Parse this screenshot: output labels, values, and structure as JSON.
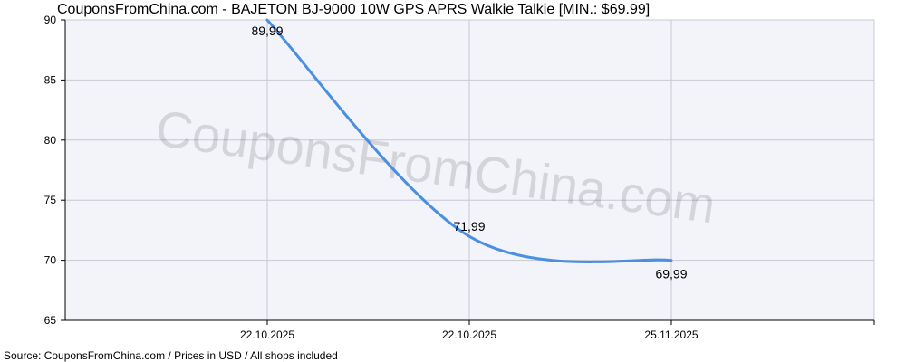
{
  "title": "CouponsFromChina.com - BAJETON BJ-9000 10W GPS APRS Walkie Talkie [MIN.: $69.99]",
  "footer": "Source: CouponsFromChina.com / Prices in USD / All shops included",
  "watermark": "CouponsFromChina.com",
  "colors": {
    "line": "#4a90e2",
    "plot_bg": "#f3f3fa",
    "grid": "#c8c8d4"
  },
  "chart_data": {
    "type": "line",
    "title": "CouponsFromChina.com - BAJETON BJ-9000 10W GPS APRS Walkie Talkie [MIN.: $69.99]",
    "xlabel": "",
    "ylabel": "",
    "ylim": [
      65,
      90
    ],
    "y_ticks": [
      90,
      85,
      80,
      75,
      70,
      65
    ],
    "grid": true,
    "categories": [
      "22.10.2025",
      "22.10.2025",
      "25.11.2025"
    ],
    "series": [
      {
        "values": [
          89.99,
          71.99,
          69.99
        ],
        "labels": [
          "89,99",
          "71,99",
          "69,99"
        ]
      }
    ]
  }
}
